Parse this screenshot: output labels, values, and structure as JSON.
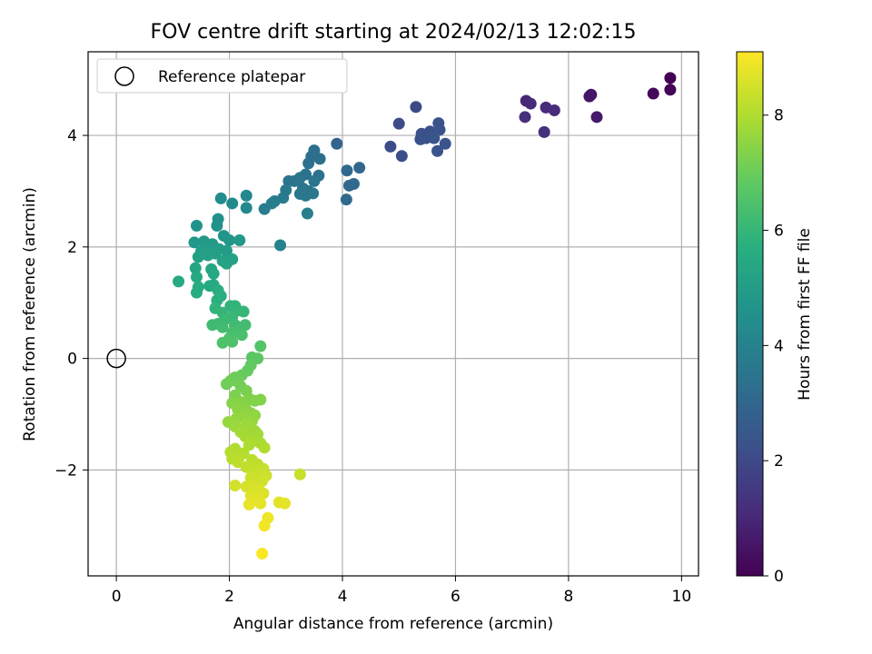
{
  "chart_data": {
    "type": "scatter",
    "title": "FOV centre drift starting at 2024/02/13 12:02:15",
    "xlabel": "Angular distance from reference (arcmin)",
    "ylabel": "Rotation from reference (arcmin)",
    "xlim": [
      -0.5,
      10.3
    ],
    "ylim": [
      -3.9,
      5.5
    ],
    "xticks": [
      "0",
      "2",
      "4",
      "6",
      "8",
      "10"
    ],
    "xtick_values": [
      0,
      2,
      4,
      6,
      8,
      10
    ],
    "yticks": [
      "−2",
      "0",
      "2",
      "4"
    ],
    "ytick_values": [
      -2,
      0,
      2,
      4
    ],
    "grid": true,
    "legend": {
      "placement": "top-left",
      "entries": [
        "Reference platepar"
      ]
    },
    "reference_point": {
      "x": 0,
      "y": 0
    },
    "colorbar": {
      "label": "Hours from first FF file",
      "range": [
        0,
        9.1
      ],
      "ticks": [
        "0",
        "2",
        "4",
        "6",
        "8"
      ],
      "tick_values": [
        0,
        2,
        4,
        6,
        8
      ],
      "colormap": "viridis"
    },
    "points": [
      {
        "x": 9.8,
        "y": 5.03,
        "c": 0.0
      },
      {
        "x": 9.8,
        "y": 4.82,
        "c": 0.1
      },
      {
        "x": 9.5,
        "y": 4.75,
        "c": 0.15
      },
      {
        "x": 8.4,
        "y": 4.73,
        "c": 0.5
      },
      {
        "x": 8.37,
        "y": 4.7,
        "c": 0.55
      },
      {
        "x": 8.5,
        "y": 4.33,
        "c": 0.6
      },
      {
        "x": 7.25,
        "y": 4.62,
        "c": 1.0
      },
      {
        "x": 7.33,
        "y": 4.57,
        "c": 1.05
      },
      {
        "x": 7.6,
        "y": 4.5,
        "c": 1.1
      },
      {
        "x": 7.75,
        "y": 4.45,
        "c": 1.15
      },
      {
        "x": 7.23,
        "y": 4.33,
        "c": 1.2
      },
      {
        "x": 7.57,
        "y": 4.06,
        "c": 1.25
      },
      {
        "x": 5.3,
        "y": 4.51,
        "c": 2.0
      },
      {
        "x": 5.0,
        "y": 4.21,
        "c": 2.05
      },
      {
        "x": 4.85,
        "y": 3.8,
        "c": 2.1
      },
      {
        "x": 5.05,
        "y": 3.63,
        "c": 2.15
      },
      {
        "x": 5.4,
        "y": 4.03,
        "c": 2.2
      },
      {
        "x": 5.48,
        "y": 3.95,
        "c": 2.2
      },
      {
        "x": 5.55,
        "y": 4.07,
        "c": 2.25
      },
      {
        "x": 5.38,
        "y": 3.93,
        "c": 2.25
      },
      {
        "x": 5.7,
        "y": 4.22,
        "c": 2.3
      },
      {
        "x": 5.72,
        "y": 4.1,
        "c": 2.3
      },
      {
        "x": 5.68,
        "y": 3.72,
        "c": 2.35
      },
      {
        "x": 5.82,
        "y": 3.85,
        "c": 2.35
      },
      {
        "x": 5.62,
        "y": 3.95,
        "c": 2.4
      },
      {
        "x": 3.9,
        "y": 3.85,
        "c": 2.9
      },
      {
        "x": 4.3,
        "y": 3.42,
        "c": 3.0
      },
      {
        "x": 4.08,
        "y": 3.37,
        "c": 3.05
      },
      {
        "x": 4.12,
        "y": 3.1,
        "c": 3.1
      },
      {
        "x": 4.2,
        "y": 3.13,
        "c": 3.1
      },
      {
        "x": 4.07,
        "y": 2.85,
        "c": 3.15
      },
      {
        "x": 3.5,
        "y": 3.73,
        "c": 3.3
      },
      {
        "x": 3.45,
        "y": 3.62,
        "c": 3.3
      },
      {
        "x": 3.6,
        "y": 3.58,
        "c": 3.35
      },
      {
        "x": 3.4,
        "y": 3.5,
        "c": 3.35
      },
      {
        "x": 3.35,
        "y": 3.3,
        "c": 3.4
      },
      {
        "x": 3.58,
        "y": 3.28,
        "c": 3.4
      },
      {
        "x": 3.5,
        "y": 3.18,
        "c": 3.45
      },
      {
        "x": 3.25,
        "y": 3.24,
        "c": 3.45
      },
      {
        "x": 3.15,
        "y": 3.18,
        "c": 3.5
      },
      {
        "x": 3.05,
        "y": 3.18,
        "c": 3.5
      },
      {
        "x": 3.3,
        "y": 3.05,
        "c": 3.55
      },
      {
        "x": 3.4,
        "y": 3.0,
        "c": 3.55
      },
      {
        "x": 3.48,
        "y": 2.96,
        "c": 3.6
      },
      {
        "x": 3.25,
        "y": 2.95,
        "c": 3.6
      },
      {
        "x": 3.35,
        "y": 2.92,
        "c": 3.6
      },
      {
        "x": 3.0,
        "y": 3.02,
        "c": 3.7
      },
      {
        "x": 2.95,
        "y": 2.88,
        "c": 3.7
      },
      {
        "x": 2.8,
        "y": 2.82,
        "c": 3.75
      },
      {
        "x": 2.75,
        "y": 2.78,
        "c": 3.8
      },
      {
        "x": 2.62,
        "y": 2.68,
        "c": 3.85
      },
      {
        "x": 3.38,
        "y": 2.6,
        "c": 3.9
      },
      {
        "x": 2.9,
        "y": 2.03,
        "c": 4.0
      },
      {
        "x": 2.3,
        "y": 2.92,
        "c": 4.2
      },
      {
        "x": 2.3,
        "y": 2.7,
        "c": 4.25
      },
      {
        "x": 2.05,
        "y": 2.78,
        "c": 4.3
      },
      {
        "x": 1.85,
        "y": 2.87,
        "c": 4.35
      },
      {
        "x": 1.8,
        "y": 2.5,
        "c": 4.5
      },
      {
        "x": 1.78,
        "y": 2.38,
        "c": 4.55
      },
      {
        "x": 1.42,
        "y": 2.38,
        "c": 4.6
      },
      {
        "x": 1.9,
        "y": 2.2,
        "c": 4.7
      },
      {
        "x": 2.0,
        "y": 2.12,
        "c": 4.75
      },
      {
        "x": 2.18,
        "y": 2.12,
        "c": 4.8
      },
      {
        "x": 1.38,
        "y": 2.08,
        "c": 4.8
      },
      {
        "x": 1.55,
        "y": 2.1,
        "c": 4.85
      },
      {
        "x": 1.7,
        "y": 2.05,
        "c": 4.9
      },
      {
        "x": 1.6,
        "y": 1.98,
        "c": 4.95
      },
      {
        "x": 1.82,
        "y": 1.96,
        "c": 5.0
      },
      {
        "x": 1.95,
        "y": 1.93,
        "c": 5.0
      },
      {
        "x": 1.5,
        "y": 1.92,
        "c": 5.05
      },
      {
        "x": 1.75,
        "y": 1.88,
        "c": 5.1
      },
      {
        "x": 1.45,
        "y": 1.82,
        "c": 5.1
      },
      {
        "x": 1.62,
        "y": 1.85,
        "c": 5.15
      },
      {
        "x": 2.05,
        "y": 1.78,
        "c": 5.2
      },
      {
        "x": 1.88,
        "y": 1.75,
        "c": 5.2
      },
      {
        "x": 1.95,
        "y": 1.7,
        "c": 5.25
      },
      {
        "x": 1.4,
        "y": 1.62,
        "c": 5.3
      },
      {
        "x": 1.68,
        "y": 1.6,
        "c": 5.35
      },
      {
        "x": 1.72,
        "y": 1.52,
        "c": 5.4
      },
      {
        "x": 1.42,
        "y": 1.46,
        "c": 5.45
      },
      {
        "x": 1.1,
        "y": 1.38,
        "c": 5.5
      },
      {
        "x": 1.72,
        "y": 1.32,
        "c": 5.55
      },
      {
        "x": 1.65,
        "y": 1.3,
        "c": 5.55
      },
      {
        "x": 1.45,
        "y": 1.28,
        "c": 5.6
      },
      {
        "x": 1.42,
        "y": 1.18,
        "c": 5.6
      },
      {
        "x": 1.8,
        "y": 1.22,
        "c": 5.65
      },
      {
        "x": 1.85,
        "y": 1.12,
        "c": 5.7
      },
      {
        "x": 1.78,
        "y": 1.04,
        "c": 5.75
      },
      {
        "x": 2.02,
        "y": 0.94,
        "c": 5.85
      },
      {
        "x": 2.1,
        "y": 0.94,
        "c": 5.9
      },
      {
        "x": 1.75,
        "y": 0.9,
        "c": 5.9
      },
      {
        "x": 2.15,
        "y": 0.86,
        "c": 5.95
      },
      {
        "x": 2.25,
        "y": 0.84,
        "c": 6.0
      },
      {
        "x": 1.88,
        "y": 0.82,
        "c": 6.0
      },
      {
        "x": 2.05,
        "y": 0.74,
        "c": 6.05
      },
      {
        "x": 1.92,
        "y": 0.7,
        "c": 6.1
      },
      {
        "x": 1.8,
        "y": 0.62,
        "c": 6.15
      },
      {
        "x": 1.7,
        "y": 0.6,
        "c": 6.2
      },
      {
        "x": 2.1,
        "y": 0.6,
        "c": 6.2
      },
      {
        "x": 2.28,
        "y": 0.6,
        "c": 6.25
      },
      {
        "x": 1.88,
        "y": 0.56,
        "c": 6.25
      },
      {
        "x": 2.2,
        "y": 0.52,
        "c": 6.3
      },
      {
        "x": 2.05,
        "y": 0.46,
        "c": 6.35
      },
      {
        "x": 2.22,
        "y": 0.42,
        "c": 6.4
      },
      {
        "x": 2.0,
        "y": 0.36,
        "c": 6.45
      },
      {
        "x": 2.05,
        "y": 0.3,
        "c": 6.5
      },
      {
        "x": 1.88,
        "y": 0.28,
        "c": 6.5
      },
      {
        "x": 2.55,
        "y": 0.22,
        "c": 6.6
      },
      {
        "x": 2.4,
        "y": 0.02,
        "c": 6.7
      },
      {
        "x": 2.5,
        "y": 0.0,
        "c": 6.75
      },
      {
        "x": 2.38,
        "y": -0.12,
        "c": 6.85
      },
      {
        "x": 2.32,
        "y": -0.22,
        "c": 6.9
      },
      {
        "x": 2.22,
        "y": -0.3,
        "c": 6.95
      },
      {
        "x": 2.1,
        "y": -0.34,
        "c": 7.0
      },
      {
        "x": 2.15,
        "y": -0.42,
        "c": 7.05
      },
      {
        "x": 2.02,
        "y": -0.4,
        "c": 7.05
      },
      {
        "x": 1.95,
        "y": -0.46,
        "c": 7.1
      },
      {
        "x": 2.2,
        "y": -0.5,
        "c": 7.15
      },
      {
        "x": 2.3,
        "y": -0.58,
        "c": 7.2
      },
      {
        "x": 2.1,
        "y": -0.66,
        "c": 7.25
      },
      {
        "x": 2.35,
        "y": -0.72,
        "c": 7.3
      },
      {
        "x": 2.55,
        "y": -0.74,
        "c": 7.35
      },
      {
        "x": 2.45,
        "y": -0.76,
        "c": 7.35
      },
      {
        "x": 2.2,
        "y": -0.78,
        "c": 7.4
      },
      {
        "x": 2.05,
        "y": -0.8,
        "c": 7.4
      },
      {
        "x": 2.28,
        "y": -0.88,
        "c": 7.45
      },
      {
        "x": 2.15,
        "y": -0.92,
        "c": 7.5
      },
      {
        "x": 2.38,
        "y": -0.98,
        "c": 7.5
      },
      {
        "x": 2.45,
        "y": -1.02,
        "c": 7.55
      },
      {
        "x": 2.25,
        "y": -1.05,
        "c": 7.6
      },
      {
        "x": 2.12,
        "y": -1.08,
        "c": 7.6
      },
      {
        "x": 2.4,
        "y": -1.12,
        "c": 7.65
      },
      {
        "x": 1.98,
        "y": -1.14,
        "c": 7.65
      },
      {
        "x": 2.3,
        "y": -1.18,
        "c": 7.7
      },
      {
        "x": 2.1,
        "y": -1.22,
        "c": 7.7
      },
      {
        "x": 2.35,
        "y": -1.26,
        "c": 7.75
      },
      {
        "x": 2.45,
        "y": -1.3,
        "c": 7.75
      },
      {
        "x": 2.2,
        "y": -1.32,
        "c": 7.8
      },
      {
        "x": 2.5,
        "y": -1.36,
        "c": 7.8
      },
      {
        "x": 2.28,
        "y": -1.4,
        "c": 7.85
      },
      {
        "x": 2.42,
        "y": -1.48,
        "c": 7.9
      },
      {
        "x": 2.55,
        "y": -1.52,
        "c": 7.9
      },
      {
        "x": 2.35,
        "y": -1.55,
        "c": 7.95
      },
      {
        "x": 2.62,
        "y": -1.6,
        "c": 8.0
      },
      {
        "x": 2.1,
        "y": -1.62,
        "c": 8.0
      },
      {
        "x": 2.02,
        "y": -1.68,
        "c": 8.05
      },
      {
        "x": 2.25,
        "y": -1.7,
        "c": 8.05
      },
      {
        "x": 2.18,
        "y": -1.76,
        "c": 8.1
      },
      {
        "x": 2.05,
        "y": -1.8,
        "c": 8.1
      },
      {
        "x": 2.4,
        "y": -1.82,
        "c": 8.15
      },
      {
        "x": 2.15,
        "y": -1.86,
        "c": 8.2
      },
      {
        "x": 2.5,
        "y": -1.9,
        "c": 8.2
      },
      {
        "x": 2.3,
        "y": -1.95,
        "c": 8.25
      },
      {
        "x": 2.6,
        "y": -1.98,
        "c": 8.3
      },
      {
        "x": 2.45,
        "y": -2.02,
        "c": 8.3
      },
      {
        "x": 2.52,
        "y": -2.08,
        "c": 8.35
      },
      {
        "x": 3.25,
        "y": -2.08,
        "c": 8.35
      },
      {
        "x": 2.65,
        "y": -2.1,
        "c": 8.4
      },
      {
        "x": 2.38,
        "y": -2.14,
        "c": 8.4
      },
      {
        "x": 2.58,
        "y": -2.2,
        "c": 8.45
      },
      {
        "x": 2.42,
        "y": -2.26,
        "c": 8.5
      },
      {
        "x": 2.1,
        "y": -2.28,
        "c": 8.5
      },
      {
        "x": 2.3,
        "y": -2.3,
        "c": 8.55
      },
      {
        "x": 2.52,
        "y": -2.36,
        "c": 8.6
      },
      {
        "x": 2.6,
        "y": -2.42,
        "c": 8.6
      },
      {
        "x": 2.38,
        "y": -2.46,
        "c": 8.65
      },
      {
        "x": 2.48,
        "y": -2.5,
        "c": 8.7
      },
      {
        "x": 2.88,
        "y": -2.58,
        "c": 8.7
      },
      {
        "x": 2.98,
        "y": -2.6,
        "c": 8.75
      },
      {
        "x": 2.55,
        "y": -2.6,
        "c": 8.75
      },
      {
        "x": 2.35,
        "y": -2.62,
        "c": 8.8
      },
      {
        "x": 2.68,
        "y": -2.86,
        "c": 8.9
      },
      {
        "x": 2.62,
        "y": -3.0,
        "c": 8.95
      },
      {
        "x": 2.58,
        "y": -3.5,
        "c": 9.05
      }
    ]
  }
}
